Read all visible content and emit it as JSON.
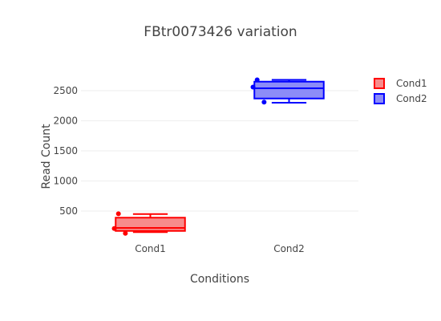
{
  "chart_data": {
    "type": "box",
    "title": "FBtr0073426 variation",
    "xlabel": "Conditions",
    "ylabel": "Read Count",
    "categories": [
      "Cond1",
      "Cond2"
    ],
    "yticks": [
      500,
      1000,
      1500,
      2000,
      2500
    ],
    "ylim": [
      0,
      2900
    ],
    "grid": true,
    "legend_position": "top-right",
    "series": [
      {
        "name": "Cond1",
        "color": "#ff0000",
        "fill": "#f78c8c",
        "min": 150,
        "q1": 170,
        "median": 220,
        "q3": 390,
        "max": 450,
        "points": [
          455,
          210,
          130
        ]
      },
      {
        "name": "Cond2",
        "color": "#0000ff",
        "fill": "#8c8cf7",
        "min": 2300,
        "q1": 2370,
        "median": 2540,
        "q3": 2650,
        "max": 2680,
        "points": [
          2680,
          2560,
          2310
        ]
      }
    ]
  }
}
